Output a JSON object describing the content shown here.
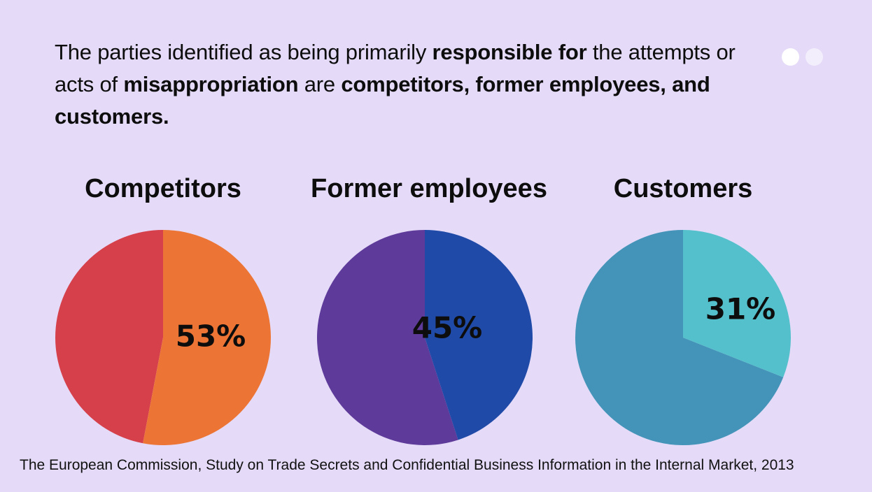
{
  "headline": {
    "p1": "The parties identified as being primarily ",
    "b1": "responsible for",
    "p2": " the attempts or acts of ",
    "b2": "misappropriation",
    "p3": " are ",
    "b3": "competitors, former employees, and customers."
  },
  "source": "The European Commission, Study on Trade Secrets and Confidential Business Information in the Internal Market, 2013",
  "chart_data": [
    {
      "type": "pie",
      "title": "Competitors",
      "value": 53,
      "label": "53%",
      "colors": {
        "highlight": "#ec7535",
        "rest": "#d6404a"
      }
    },
    {
      "type": "pie",
      "title": "Former employees",
      "value": 45,
      "label": "45%",
      "colors": {
        "highlight": "#1f4aa8",
        "rest": "#5e3b9a"
      }
    },
    {
      "type": "pie",
      "title": "Customers",
      "value": 31,
      "label": "31%",
      "colors": {
        "highlight": "#54c0cb",
        "rest": "#4394b8"
      }
    }
  ]
}
